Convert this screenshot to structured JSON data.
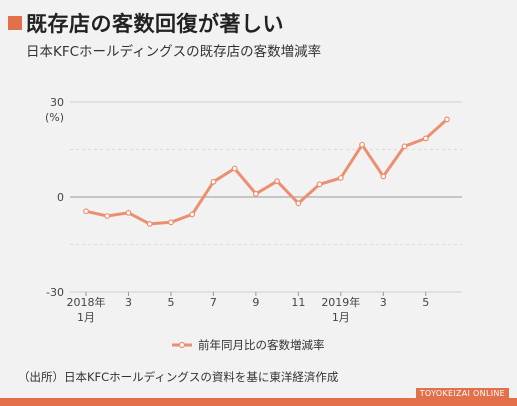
{
  "header": {
    "title": "既存店の客数回復が著しい",
    "subtitle": "日本KFCホールディングスの既存店の客数増減率"
  },
  "footer": {
    "source": "（出所）日本KFCホールディングスの資料を基に東洋経済作成",
    "brand": "TOYOKEIZAI ONLINE"
  },
  "colors": {
    "accent": "#e2704a",
    "series": "#ec8f70",
    "grid": "#cfcfcf"
  },
  "chart_data": {
    "type": "line",
    "title": "既存店の客数回復が著しい",
    "subtitle": "日本KFCホールディングスの既存店の客数増減率",
    "unit_label": "(%)",
    "ylim": [
      -30,
      30
    ],
    "yticks": [
      {
        "value": 30,
        "label": "30"
      },
      {
        "value": 0,
        "label": "0"
      },
      {
        "value": -30,
        "label": "-30"
      }
    ],
    "x": [
      "2018-01",
      "2018-02",
      "2018-03",
      "2018-04",
      "2018-05",
      "2018-06",
      "2018-07",
      "2018-08",
      "2018-09",
      "2018-10",
      "2018-11",
      "2018-12",
      "2019-01",
      "2019-02",
      "2019-03",
      "2019-04",
      "2019-05",
      "2019-06"
    ],
    "xticks": [
      {
        "index": 0,
        "line1": "2018年",
        "line2": "1月"
      },
      {
        "index": 2,
        "line1": "3",
        "line2": ""
      },
      {
        "index": 4,
        "line1": "5",
        "line2": ""
      },
      {
        "index": 6,
        "line1": "7",
        "line2": ""
      },
      {
        "index": 8,
        "line1": "9",
        "line2": ""
      },
      {
        "index": 10,
        "line1": "11",
        "line2": ""
      },
      {
        "index": 12,
        "line1": "2019年",
        "line2": "1月"
      },
      {
        "index": 14,
        "line1": "3",
        "line2": ""
      },
      {
        "index": 16,
        "line1": "5",
        "line2": ""
      }
    ],
    "series": [
      {
        "name": "前年同月比の客数増減率",
        "values": [
          -4.5,
          -6.0,
          -5.0,
          -8.5,
          -8.0,
          -5.5,
          4.8,
          9.0,
          1.0,
          5.0,
          -2.0,
          4.0,
          6.0,
          16.5,
          6.5,
          16.0,
          18.5,
          24.5
        ]
      }
    ],
    "grid": true,
    "legend_position": "bottom-center"
  }
}
